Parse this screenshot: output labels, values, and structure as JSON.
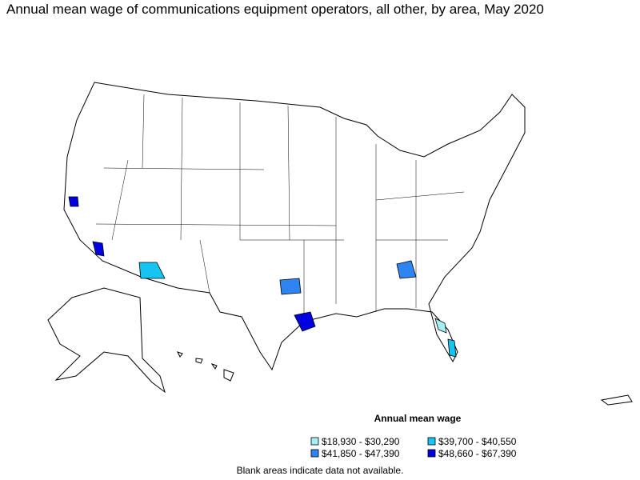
{
  "title": "Annual mean wage of communications equipment operators, all other, by area, May 2020",
  "legend": {
    "title": "Annual mean wage",
    "items": [
      {
        "label": "$18,930 - $30,290",
        "color": "#a6f0f5"
      },
      {
        "label": "$39,700 - $40,550",
        "color": "#16c4f2"
      },
      {
        "label": "$41,850 - $47,390",
        "color": "#2e84f0"
      },
      {
        "label": "$48,660 - $67,390",
        "color": "#0000e0"
      }
    ]
  },
  "footnote": "Blank areas indicate data not available."
}
